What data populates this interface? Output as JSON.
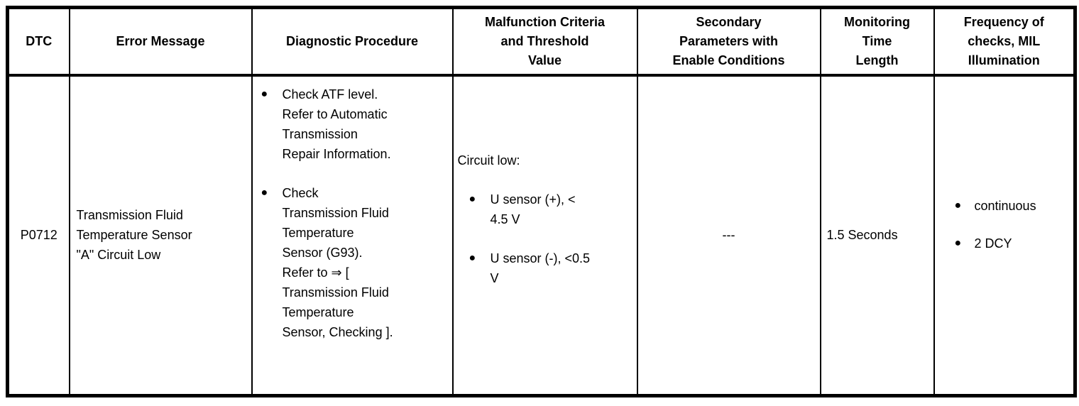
{
  "table": {
    "bullet_glyph": "●",
    "colors": {
      "border": "#000000",
      "background": "#ffffff",
      "text": "#000000"
    },
    "headers": {
      "dtc": [
        "DTC"
      ],
      "error_message": [
        "Error Message"
      ],
      "diagnostic_procedure": [
        "Diagnostic Procedure"
      ],
      "malfunction_criteria": [
        "Malfunction Criteria",
        "and Threshold",
        "Value"
      ],
      "secondary_parameters": [
        "Secondary",
        "Parameters with",
        "Enable Conditions"
      ],
      "monitoring_time": [
        "Monitoring",
        "Time",
        "Length"
      ],
      "frequency_of_checks": [
        "Frequency of",
        "checks, MIL",
        "Illumination"
      ]
    },
    "row": {
      "dtc": "P0712",
      "error_message_lines": [
        "Transmission Fluid",
        "Temperature Sensor",
        "\"A\" Circuit Low"
      ],
      "diagnostic_procedure": {
        "bullet_1_lines": [
          "Check ATF level.",
          "Refer to Automatic",
          "Transmission",
          "Repair Information."
        ],
        "bullet_2_lines": [
          "Check",
          "Transmission Fluid",
          "Temperature",
          "Sensor (G93).",
          "Refer to ⇒ [",
          "Transmission Fluid",
          "Temperature",
          "Sensor, Checking ]."
        ]
      },
      "malfunction_criteria": {
        "intro": "Circuit low:",
        "bullet_1_lines": [
          "U sensor (+), <",
          "4.5 V"
        ],
        "bullet_2_lines": [
          "U sensor (-), <0.5",
          "V"
        ]
      },
      "secondary_parameters": "---",
      "monitoring_time_length": "1.5 Seconds",
      "frequency_of_checks": {
        "bullet_1": "continuous",
        "bullet_2": "2 DCY"
      }
    }
  }
}
